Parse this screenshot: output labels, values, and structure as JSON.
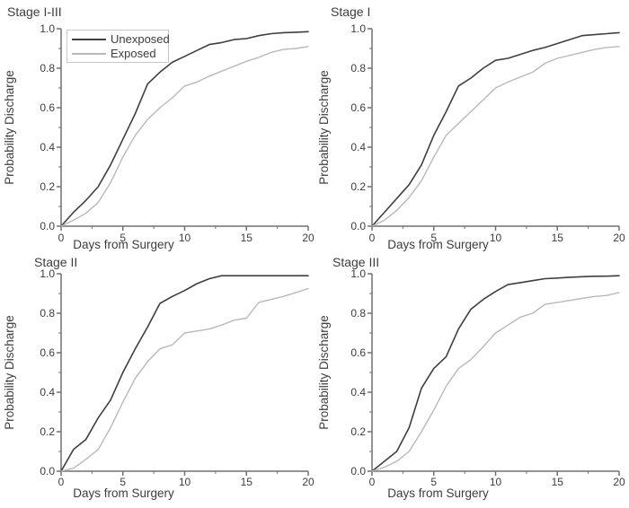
{
  "figure": {
    "background": "#ffffff",
    "text_color": "#3d3d3d",
    "axis_color": "#707070"
  },
  "legend": {
    "border_color": "#c9c9c9",
    "entries": [
      {
        "label": "Unexposed",
        "color": "#3f3f3f"
      },
      {
        "label": "Exposed",
        "color": "#b9b9b9"
      }
    ]
  },
  "chart_data": [
    {
      "type": "line",
      "title": "Stage I-III",
      "xlabel": "Days from Surgery",
      "ylabel": "Probability Discharge",
      "xlim": [
        0,
        20
      ],
      "ylim": [
        0.0,
        1.0
      ],
      "x_ticks": [
        0,
        5,
        10,
        15,
        20
      ],
      "x_tick_labels": [
        "0",
        "5",
        "10",
        "15",
        "20"
      ],
      "y_ticks": [
        0.0,
        0.2,
        0.4,
        0.6,
        0.8,
        1.0
      ],
      "y_tick_labels": [
        "0.0",
        "0.2",
        "0.4",
        "0.6",
        "0.8",
        "1.0"
      ],
      "x_minor_step": 2.5,
      "y_minor_step": 0.1,
      "grid": false,
      "legend_position": "top-left",
      "x": [
        0,
        1,
        2,
        3,
        4,
        5,
        6,
        7,
        8,
        9,
        10,
        11,
        12,
        13,
        14,
        15,
        16,
        17,
        18,
        19,
        20
      ],
      "series": [
        {
          "name": "Unexposed",
          "color": "#3f3f3f",
          "values": [
            0,
            0.07,
            0.13,
            0.2,
            0.31,
            0.44,
            0.57,
            0.72,
            0.78,
            0.83,
            0.86,
            0.89,
            0.92,
            0.93,
            0.945,
            0.95,
            0.965,
            0.975,
            0.98,
            0.982,
            0.985
          ]
        },
        {
          "name": "Exposed",
          "color": "#b9b9b9",
          "values": [
            0,
            0.03,
            0.065,
            0.12,
            0.22,
            0.35,
            0.46,
            0.54,
            0.6,
            0.65,
            0.71,
            0.73,
            0.76,
            0.785,
            0.81,
            0.835,
            0.855,
            0.88,
            0.895,
            0.9,
            0.91
          ]
        }
      ]
    },
    {
      "type": "line",
      "title": "Stage I",
      "xlabel": "Days from Surgery",
      "ylabel": "Probability Discharge",
      "xlim": [
        0,
        20
      ],
      "ylim": [
        0.0,
        1.0
      ],
      "x_ticks": [
        0,
        5,
        10,
        15,
        20
      ],
      "x_tick_labels": [
        "0",
        "5",
        "10",
        "15",
        "20"
      ],
      "y_ticks": [
        0.0,
        0.2,
        0.4,
        0.6,
        0.8,
        1.0
      ],
      "y_tick_labels": [
        "0.0",
        "0.2",
        "0.4",
        "0.6",
        "0.8",
        "1.0"
      ],
      "x_minor_step": 2.5,
      "y_minor_step": 0.1,
      "grid": false,
      "legend_position": "none",
      "x": [
        0,
        1,
        2,
        3,
        4,
        5,
        6,
        7,
        8,
        9,
        10,
        11,
        12,
        13,
        14,
        15,
        16,
        17,
        18,
        19,
        20
      ],
      "series": [
        {
          "name": "Unexposed",
          "color": "#3f3f3f",
          "values": [
            0,
            0.07,
            0.14,
            0.21,
            0.31,
            0.46,
            0.58,
            0.71,
            0.75,
            0.8,
            0.84,
            0.85,
            0.87,
            0.89,
            0.905,
            0.925,
            0.945,
            0.965,
            0.97,
            0.975,
            0.98
          ]
        },
        {
          "name": "Exposed",
          "color": "#b9b9b9",
          "values": [
            0,
            0.03,
            0.08,
            0.145,
            0.23,
            0.35,
            0.46,
            0.52,
            0.58,
            0.64,
            0.7,
            0.73,
            0.755,
            0.78,
            0.825,
            0.85,
            0.865,
            0.88,
            0.895,
            0.905,
            0.91
          ]
        }
      ]
    },
    {
      "type": "line",
      "title": "Stage II",
      "xlabel": "Days from Surgery",
      "ylabel": "Probability Discharge",
      "xlim": [
        0,
        20
      ],
      "ylim": [
        0.0,
        1.0
      ],
      "x_ticks": [
        0,
        5,
        10,
        15,
        20
      ],
      "x_tick_labels": [
        "0",
        "5",
        "10",
        "15",
        "20"
      ],
      "y_ticks": [
        0.0,
        0.2,
        0.4,
        0.6,
        0.8,
        1.0
      ],
      "y_tick_labels": [
        "0.0",
        "0.2",
        "0.4",
        "0.6",
        "0.8",
        "1.0"
      ],
      "x_minor_step": 2.5,
      "y_minor_step": 0.1,
      "grid": false,
      "legend_position": "none",
      "x": [
        0,
        1,
        2,
        3,
        4,
        5,
        6,
        7,
        8,
        9,
        10,
        11,
        12,
        13,
        14,
        15,
        16,
        17,
        18,
        19,
        20
      ],
      "series": [
        {
          "name": "Unexposed",
          "color": "#3f3f3f",
          "values": [
            0,
            0.11,
            0.16,
            0.27,
            0.36,
            0.5,
            0.62,
            0.73,
            0.85,
            0.885,
            0.915,
            0.95,
            0.975,
            0.99,
            0.99,
            0.99,
            0.99,
            0.99,
            0.99,
            0.99,
            0.99
          ]
        },
        {
          "name": "Exposed",
          "color": "#b9b9b9",
          "values": [
            0,
            0.015,
            0.06,
            0.11,
            0.22,
            0.35,
            0.47,
            0.555,
            0.62,
            0.64,
            0.7,
            0.71,
            0.72,
            0.74,
            0.765,
            0.775,
            0.855,
            0.87,
            0.885,
            0.905,
            0.925
          ]
        }
      ]
    },
    {
      "type": "line",
      "title": "Stage III",
      "xlabel": "Days from Surgery",
      "ylabel": "Probability Discharge",
      "xlim": [
        0,
        20
      ],
      "ylim": [
        0.0,
        1.0
      ],
      "x_ticks": [
        0,
        5,
        10,
        15,
        20
      ],
      "x_tick_labels": [
        "0",
        "5",
        "10",
        "15",
        "20"
      ],
      "y_ticks": [
        0.0,
        0.2,
        0.4,
        0.6,
        0.8,
        1.0
      ],
      "y_tick_labels": [
        "0.0",
        "0.2",
        "0.4",
        "0.6",
        "0.8",
        "1.0"
      ],
      "x_minor_step": 2.5,
      "y_minor_step": 0.1,
      "grid": false,
      "legend_position": "none",
      "x": [
        0,
        1,
        2,
        3,
        4,
        5,
        6,
        7,
        8,
        9,
        10,
        11,
        12,
        13,
        14,
        15,
        16,
        17,
        18,
        19,
        20
      ],
      "series": [
        {
          "name": "Unexposed",
          "color": "#3f3f3f",
          "values": [
            0,
            0.05,
            0.1,
            0.22,
            0.42,
            0.52,
            0.58,
            0.72,
            0.82,
            0.87,
            0.91,
            0.945,
            0.955,
            0.965,
            0.975,
            0.978,
            0.982,
            0.985,
            0.987,
            0.988,
            0.99
          ]
        },
        {
          "name": "Exposed",
          "color": "#b9b9b9",
          "values": [
            0,
            0.02,
            0.05,
            0.1,
            0.2,
            0.31,
            0.43,
            0.52,
            0.565,
            0.63,
            0.7,
            0.74,
            0.78,
            0.8,
            0.845,
            0.855,
            0.865,
            0.875,
            0.885,
            0.89,
            0.905
          ]
        }
      ]
    }
  ]
}
